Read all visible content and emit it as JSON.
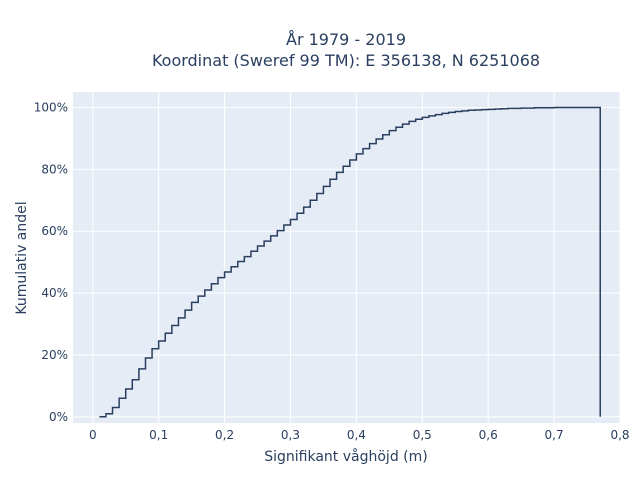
{
  "chart_data": {
    "type": "line",
    "line_shape": "step",
    "title_lines": [
      "År 1979 - 2019",
      "Koordinat (Sweref 99 TM): E 356138, N 6251068"
    ],
    "xlabel": "Signifikant våghöjd (m)",
    "ylabel": "Kumulativ andel",
    "xlim": [
      -0.03,
      0.8
    ],
    "ylim": [
      -0.02,
      1.05
    ],
    "x_ticks": [
      0,
      0.1,
      0.2,
      0.3,
      0.4,
      0.5,
      0.6,
      0.7,
      0.8
    ],
    "x_tick_labels": [
      "0",
      "0,1",
      "0,2",
      "0,3",
      "0,4",
      "0,5",
      "0,6",
      "0,7",
      "0,8"
    ],
    "y_ticks": [
      0,
      0.2,
      0.4,
      0.6,
      0.8,
      1.0
    ],
    "y_tick_labels": [
      "0%",
      "20%",
      "40%",
      "60%",
      "80%",
      "100%"
    ],
    "grid": true,
    "plot_background": "#e5ecf6",
    "line_color": "#2a3f5f",
    "series": [
      {
        "x": [
          0.01,
          0.02,
          0.03,
          0.04,
          0.05,
          0.06,
          0.07,
          0.08,
          0.09,
          0.1,
          0.11,
          0.12,
          0.13,
          0.14,
          0.15,
          0.16,
          0.17,
          0.18,
          0.19,
          0.2,
          0.21,
          0.22,
          0.23,
          0.24,
          0.25,
          0.26,
          0.27,
          0.28,
          0.29,
          0.3,
          0.31,
          0.32,
          0.33,
          0.34,
          0.35,
          0.36,
          0.37,
          0.38,
          0.39,
          0.4,
          0.41,
          0.42,
          0.43,
          0.44,
          0.45,
          0.46,
          0.47,
          0.48,
          0.49,
          0.5,
          0.51,
          0.52,
          0.53,
          0.54,
          0.55,
          0.56,
          0.57,
          0.58,
          0.59,
          0.6,
          0.61,
          0.62,
          0.63,
          0.64,
          0.65,
          0.66,
          0.67,
          0.68,
          0.69,
          0.7,
          0.71,
          0.72,
          0.73,
          0.74,
          0.75,
          0.76,
          0.77
        ],
        "y": [
          0.0,
          0.01,
          0.03,
          0.06,
          0.09,
          0.12,
          0.155,
          0.19,
          0.22,
          0.245,
          0.27,
          0.295,
          0.32,
          0.345,
          0.37,
          0.39,
          0.41,
          0.43,
          0.45,
          0.468,
          0.485,
          0.502,
          0.518,
          0.535,
          0.552,
          0.568,
          0.585,
          0.602,
          0.62,
          0.638,
          0.658,
          0.678,
          0.7,
          0.722,
          0.745,
          0.768,
          0.79,
          0.81,
          0.83,
          0.85,
          0.867,
          0.883,
          0.898,
          0.912,
          0.925,
          0.936,
          0.946,
          0.955,
          0.962,
          0.968,
          0.973,
          0.977,
          0.981,
          0.984,
          0.987,
          0.989,
          0.991,
          0.992,
          0.993,
          0.994,
          0.995,
          0.996,
          0.997,
          0.997,
          0.998,
          0.998,
          0.999,
          0.999,
          0.999,
          1.0,
          1.0,
          1.0,
          1.0,
          1.0,
          1.0,
          1.0,
          1.0
        ],
        "drop_to_zero_at": 0.77
      }
    ]
  }
}
